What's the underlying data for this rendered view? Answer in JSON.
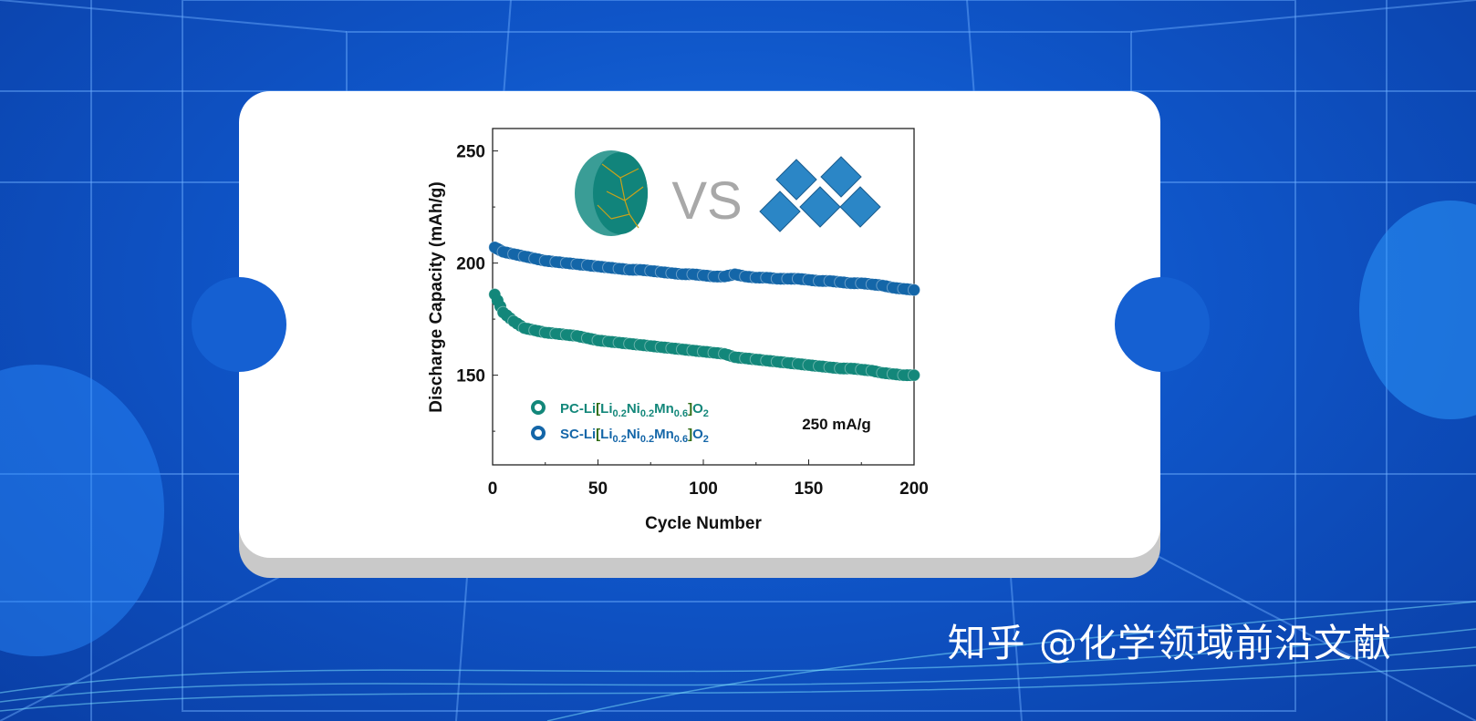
{
  "watermark": "知乎 @化学领域前沿文献",
  "colors": {
    "pc": "#13877a",
    "sc": "#1466a8",
    "bracket": "#2e6b12"
  },
  "chart_data": {
    "type": "scatter",
    "title": "",
    "xlabel": "Cycle Number",
    "ylabel": "Discharge Capacity (mAh/g)",
    "xlim": [
      0,
      200
    ],
    "ylim": [
      110,
      260
    ],
    "xticks": [
      "0",
      "50",
      "100",
      "150",
      "200"
    ],
    "yticks": [
      "150",
      "200",
      "250"
    ],
    "annotation": "250 mA/g",
    "illustration_label": "VS",
    "legend_position": "bottom-left",
    "x": [
      1,
      5,
      10,
      15,
      20,
      25,
      30,
      35,
      40,
      45,
      50,
      55,
      60,
      65,
      70,
      75,
      80,
      85,
      90,
      95,
      100,
      105,
      110,
      115,
      120,
      125,
      130,
      135,
      140,
      145,
      150,
      155,
      160,
      165,
      170,
      175,
      180,
      185,
      190,
      195,
      200
    ],
    "series": [
      {
        "name": "PC-Li[Li0.2Ni0.2Mn0.6]O2",
        "legend": {
          "prefix": "PC-Li",
          "bl": "[",
          "li": "Li",
          "s1": "0.2",
          "ni": "Ni",
          "s2": "0.2",
          "mn": "Mn",
          "s3": "0.6",
          "br": "]",
          "o": "O",
          "s4": "2"
        },
        "values": [
          186,
          178,
          174,
          171,
          170,
          169,
          168.5,
          168,
          167.5,
          166.5,
          165.5,
          165,
          164.5,
          164,
          163.5,
          163,
          162.5,
          162,
          161.5,
          161,
          160.5,
          160,
          159.5,
          158,
          157.5,
          157,
          156.5,
          156,
          155.5,
          155,
          154.5,
          154,
          153.5,
          153,
          153,
          152.5,
          152,
          151,
          150.5,
          150,
          150
        ]
      },
      {
        "name": "SC-Li[Li0.2Ni0.2Mn0.6]O2",
        "legend": {
          "prefix": "SC-Li",
          "bl": "[",
          "li": "Li",
          "s1": "0.2",
          "ni": "Ni",
          "s2": "0.2",
          "mn": "Mn",
          "s3": "0.6",
          "br": "]",
          "o": "O",
          "s4": "2"
        },
        "values": [
          207,
          205,
          204,
          203,
          202,
          201,
          200.5,
          200,
          199.5,
          199,
          198.5,
          198,
          197.5,
          197,
          197,
          196.5,
          196,
          195.5,
          195,
          195,
          194.5,
          194,
          194,
          195,
          194,
          193.5,
          193.5,
          193,
          193,
          193,
          192.5,
          192,
          192,
          191.5,
          191,
          191,
          190.5,
          190,
          189,
          188.5,
          188
        ]
      }
    ]
  }
}
